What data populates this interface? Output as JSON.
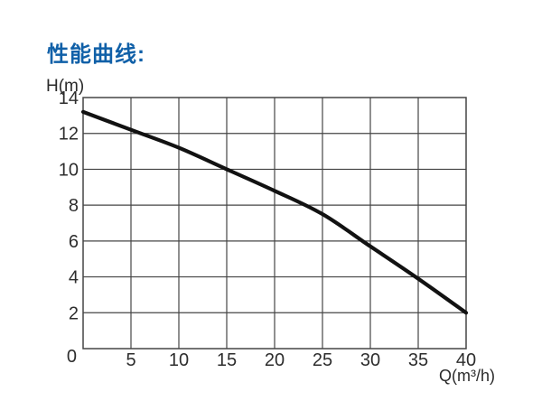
{
  "page": {
    "background": "#ffffff"
  },
  "header": {
    "title": "性能曲线:",
    "title_color": "#1060a8"
  },
  "chart_data": {
    "type": "line",
    "title": "性能曲线:",
    "xlabel": "Q(m³/h)",
    "ylabel": "H(m)",
    "x": [
      0,
      5,
      10,
      15,
      20,
      25,
      30,
      35,
      40
    ],
    "series": [
      {
        "name": "H",
        "values": [
          13.2,
          12.2,
          11.2,
          10.0,
          8.8,
          7.5,
          5.7,
          3.9,
          2.0
        ]
      }
    ],
    "xlim": [
      0,
      40
    ],
    "ylim": [
      0,
      14
    ],
    "xticks": [
      5,
      10,
      15,
      20,
      25,
      30,
      35,
      40
    ],
    "yticks": [
      0,
      2,
      4,
      6,
      8,
      10,
      12,
      14
    ],
    "origin_label": "0",
    "grid": true,
    "legend": false,
    "curve_color": "#121212",
    "grid_color": "#454545",
    "tick_label_color": "#2d2d2d"
  }
}
